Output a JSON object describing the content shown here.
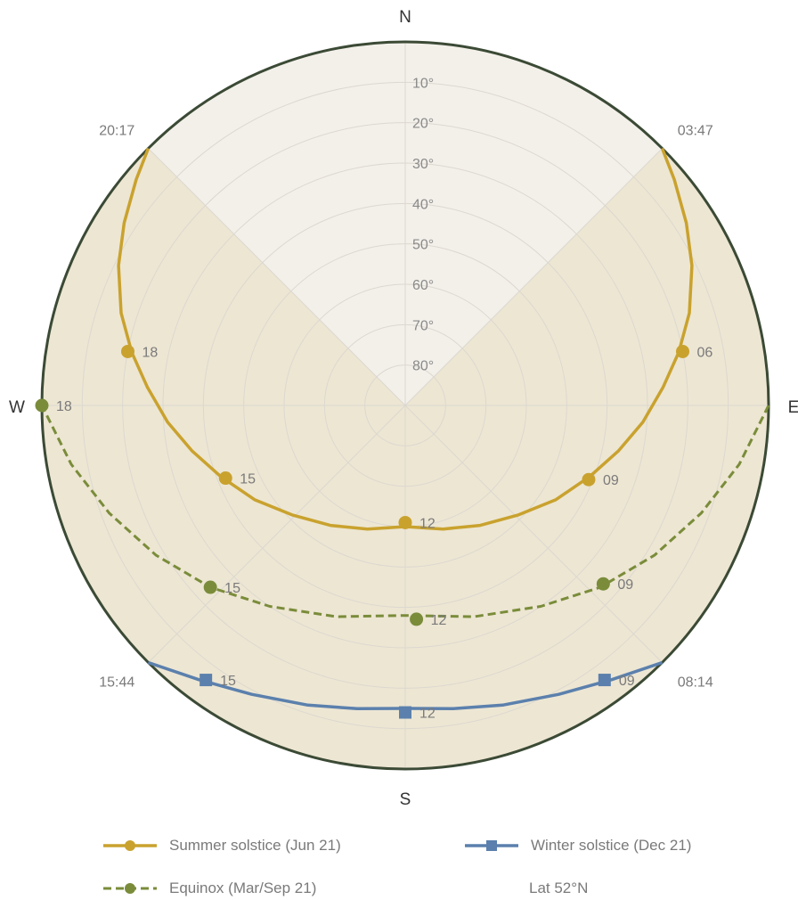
{
  "chart_data": {
    "type": "polar-sunpath",
    "location": "Lat 52°N",
    "compass": {
      "north": "N",
      "east": "E",
      "south": "S",
      "west": "W"
    },
    "elevation_rings": [
      "10°",
      "20°",
      "30°",
      "40°",
      "50°",
      "60°",
      "70°",
      "80°"
    ],
    "elevation_ring_values": [
      10,
      20,
      30,
      40,
      50,
      60,
      70,
      80
    ],
    "daylight_sectors": [
      {
        "series": "summer",
        "rise_label": "03:47",
        "set_label": "20:17"
      },
      {
        "series": "winter",
        "rise_label": "08:14",
        "set_label": "15:44"
      }
    ],
    "series": [
      {
        "key": "summer",
        "name": "Summer solstice (Jun 21)",
        "color": "#c9a22e",
        "marker": "circle",
        "dash": "solid",
        "path": [
          {
            "az": 45,
            "alt": 0
          },
          {
            "az": 50,
            "alt": 3
          },
          {
            "az": 57,
            "alt": 7
          },
          {
            "az": 64,
            "alt": 11
          },
          {
            "az": 72,
            "alt": 16
          },
          {
            "az": 79,
            "alt": 21
          },
          {
            "az": 86,
            "alt": 26
          },
          {
            "az": 94,
            "alt": 31
          },
          {
            "az": 102,
            "alt": 36
          },
          {
            "az": 111,
            "alt": 41
          },
          {
            "az": 122,
            "alt": 46
          },
          {
            "az": 134,
            "alt": 51
          },
          {
            "az": 148,
            "alt": 55
          },
          {
            "az": 163,
            "alt": 58
          },
          {
            "az": 180,
            "alt": 60
          },
          {
            "az": 197,
            "alt": 58
          },
          {
            "az": 212,
            "alt": 55
          },
          {
            "az": 226,
            "alt": 51
          },
          {
            "az": 238,
            "alt": 46
          },
          {
            "az": 249,
            "alt": 41
          },
          {
            "az": 258,
            "alt": 36
          },
          {
            "az": 266,
            "alt": 31
          },
          {
            "az": 274,
            "alt": 26
          },
          {
            "az": 281,
            "alt": 21
          },
          {
            "az": 288,
            "alt": 16
          },
          {
            "az": 296,
            "alt": 11
          },
          {
            "az": 303,
            "alt": 7
          },
          {
            "az": 310,
            "alt": 3
          },
          {
            "az": 315,
            "alt": 0
          }
        ],
        "points": [
          {
            "label": "06",
            "az": 79,
            "alt": 20
          },
          {
            "label": "09",
            "az": 112,
            "alt": 41
          },
          {
            "label": "12",
            "az": 180,
            "alt": 61
          },
          {
            "label": "15",
            "az": 248,
            "alt": 42
          },
          {
            "label": "18",
            "az": 281,
            "alt": 20
          }
        ]
      },
      {
        "key": "equinox",
        "name": "Equinox (Mar/Sep 21)",
        "color": "#7a8c3a",
        "marker": "circle",
        "dash": "dashed",
        "path": [
          {
            "az": 90,
            "alt": 0
          },
          {
            "az": 100,
            "alt": 6
          },
          {
            "az": 110,
            "alt": 12
          },
          {
            "az": 121,
            "alt": 18
          },
          {
            "az": 133,
            "alt": 24
          },
          {
            "az": 146,
            "alt": 30
          },
          {
            "az": 162,
            "alt": 35
          },
          {
            "az": 180,
            "alt": 38
          },
          {
            "az": 198,
            "alt": 35
          },
          {
            "az": 214,
            "alt": 30
          },
          {
            "az": 227,
            "alt": 24
          },
          {
            "az": 239,
            "alt": 18
          },
          {
            "az": 250,
            "alt": 12
          },
          {
            "az": 260,
            "alt": 6
          },
          {
            "az": 270,
            "alt": 0
          }
        ],
        "points": [
          {
            "label": "09",
            "az": 132,
            "alt": 24
          },
          {
            "label": "12",
            "az": 177,
            "alt": 37
          },
          {
            "label": "15",
            "az": 227,
            "alt": 24
          },
          {
            "label": "18",
            "az": 270,
            "alt": 0
          }
        ]
      },
      {
        "key": "winter",
        "name": "Winter solstice (Dec 21)",
        "color": "#5b80ad",
        "marker": "square",
        "dash": "solid",
        "path": [
          {
            "az": 135,
            "alt": 0
          },
          {
            "az": 143,
            "alt": 5
          },
          {
            "az": 152,
            "alt": 9
          },
          {
            "az": 162,
            "alt": 12
          },
          {
            "az": 171,
            "alt": 14
          },
          {
            "az": 180,
            "alt": 15
          },
          {
            "az": 189,
            "alt": 14
          },
          {
            "az": 198,
            "alt": 12
          },
          {
            "az": 208,
            "alt": 9
          },
          {
            "az": 217,
            "alt": 5
          },
          {
            "az": 225,
            "alt": 0
          }
        ],
        "points": [
          {
            "label": "09",
            "az": 144,
            "alt": 6
          },
          {
            "label": "12",
            "az": 180,
            "alt": 14
          },
          {
            "label": "15",
            "az": 216,
            "alt": 6
          }
        ]
      }
    ]
  }
}
